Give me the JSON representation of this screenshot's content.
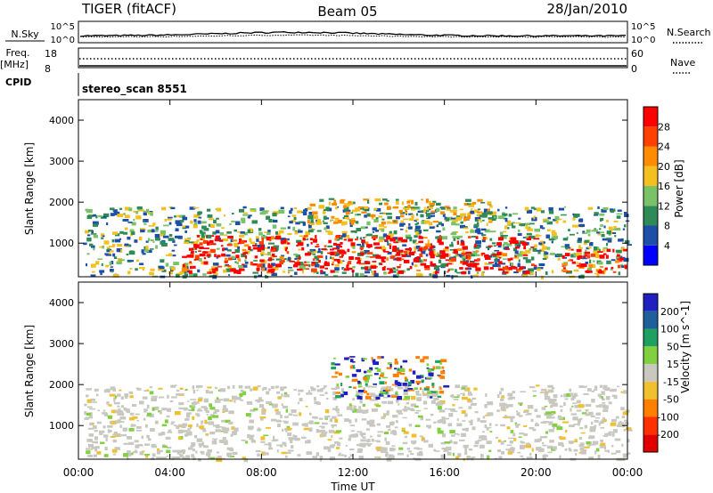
{
  "header": {
    "radar": "TIGER (fitACF)",
    "beam": "Beam 05",
    "date": "28/Jan/2010"
  },
  "noise_panel": {
    "left_label": "N.Sky",
    "right_label": "N.Search",
    "left_ticks": [
      "10^5",
      "10^0"
    ],
    "right_ticks": [
      "10^5",
      "10^0"
    ]
  },
  "freq_panel": {
    "left_label_line1": "Freq.",
    "left_label_line2": "[MHz]",
    "right_label": "Nave",
    "left_ticks": [
      "18",
      "8"
    ],
    "right_ticks": [
      "60",
      "0"
    ]
  },
  "cpid_panel": {
    "label": "CPID",
    "value": "stereo_scan 8551"
  },
  "chart_data": [
    {
      "type": "heatmap",
      "title": "",
      "xlabel": "Time UT",
      "ylabel": "Slant Range [km]",
      "x_ticks": [
        "00:00",
        "04:00",
        "08:00",
        "12:00",
        "16:00",
        "20:00",
        "00:00"
      ],
      "xlim_hours": [
        0,
        24
      ],
      "y_ticks": [
        "1000",
        "2000",
        "3000",
        "4000"
      ],
      "ylim_km": [
        180,
        4500
      ],
      "colorbar": {
        "label": "Power [dB]",
        "ticks": [
          "4",
          "8",
          "12",
          "16",
          "20",
          "24",
          "28"
        ],
        "range": [
          0,
          32
        ],
        "colors": [
          "#0000ff",
          "#1e4fa8",
          "#2e8b57",
          "#79c267",
          "#f4c020",
          "#ff8c00",
          "#ff4000",
          "#ff0000"
        ]
      },
      "echo_regions": [
        {
          "t": [
            0.2,
            24
          ],
          "r": [
            200,
            1900
          ],
          "level": "weak"
        },
        {
          "t": [
            4.5,
            20
          ],
          "r": [
            300,
            1200
          ],
          "level": "strong"
        },
        {
          "t": [
            10,
            18
          ],
          "r": [
            1500,
            2100
          ],
          "level": "medium"
        },
        {
          "t": [
            21,
            24
          ],
          "r": [
            300,
            900
          ],
          "level": "strong"
        }
      ]
    },
    {
      "type": "heatmap",
      "title": "",
      "xlabel": "Time UT",
      "ylabel": "Slant Range [km]",
      "x_ticks": [
        "00:00",
        "04:00",
        "08:00",
        "12:00",
        "16:00",
        "20:00",
        "00:00"
      ],
      "xlim_hours": [
        0,
        24
      ],
      "y_ticks": [
        "1000",
        "2000",
        "3000",
        "4000"
      ],
      "ylim_km": [
        180,
        4500
      ],
      "colorbar": {
        "label": "Velocity [m s^-1]",
        "ticks": [
          "200",
          "100",
          "50",
          "15",
          "-15",
          "-50",
          "-100",
          "-200"
        ],
        "colors": [
          "#2020c0",
          "#20609a",
          "#20a060",
          "#80d040",
          "#c8c8c0",
          "#f0c030",
          "#ff8000",
          "#ff3000",
          "#e00000"
        ]
      },
      "echo_regions": [
        {
          "t": [
            0.2,
            24
          ],
          "r": [
            200,
            2000
          ],
          "level": "ground-scatter"
        },
        {
          "t": [
            11,
            16
          ],
          "r": [
            1700,
            2700
          ],
          "level": "ionospheric"
        }
      ]
    }
  ]
}
